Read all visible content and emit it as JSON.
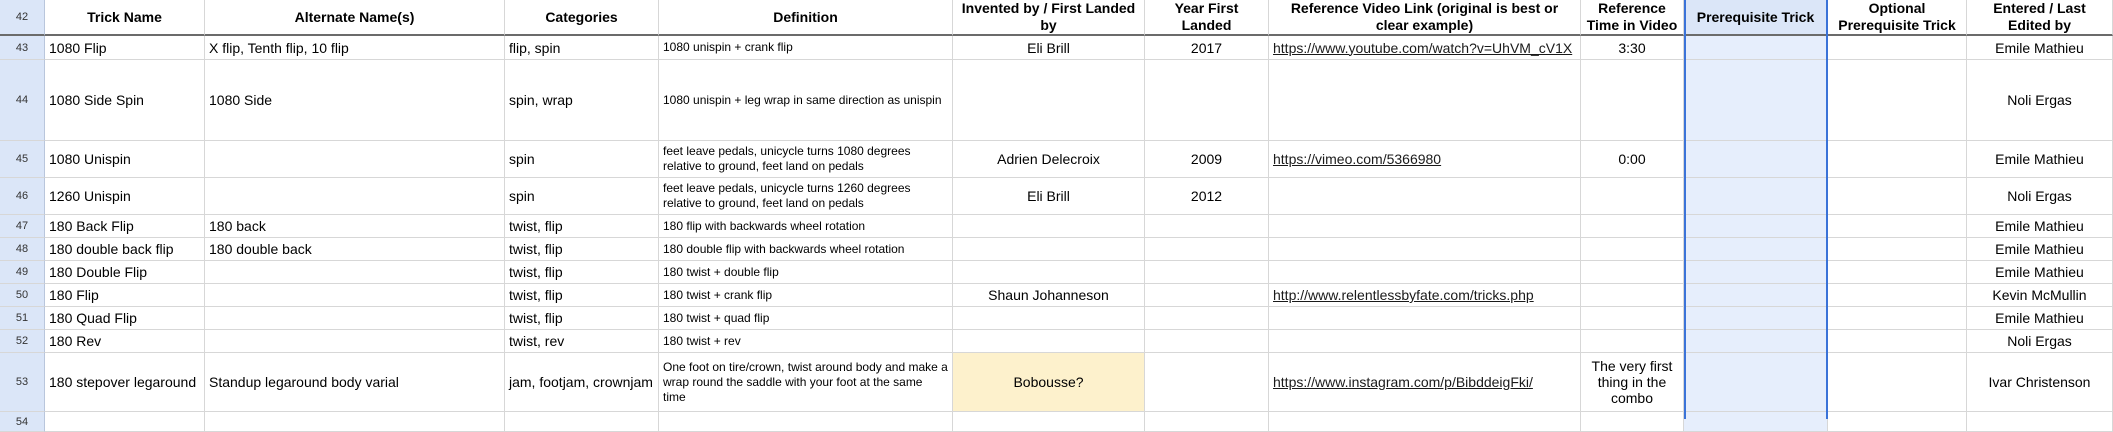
{
  "columns": [
    {
      "key": "rownum",
      "label": ""
    },
    {
      "key": "trick",
      "label": "Trick Name"
    },
    {
      "key": "alt",
      "label": "Alternate Name(s)"
    },
    {
      "key": "cat",
      "label": "Categories"
    },
    {
      "key": "def",
      "label": "Definition"
    },
    {
      "key": "inv",
      "label": "Invented by / First Landed by"
    },
    {
      "key": "year",
      "label": "Year First Landed"
    },
    {
      "key": "link",
      "label": "Reference Video Link (original is best or clear example)"
    },
    {
      "key": "time",
      "label": "Reference Time in Video"
    },
    {
      "key": "prereq",
      "label": "Prerequisite Trick"
    },
    {
      "key": "opt",
      "label": "Optional Prerequisite Trick"
    },
    {
      "key": "editor",
      "label": "Entered / Last Edited by"
    }
  ],
  "header_row_number": "42",
  "rows": [
    {
      "num": "43",
      "trick": "1080 Flip",
      "alt": "X flip, Tenth flip, 10 flip",
      "cat": "flip, spin",
      "def": "1080 unispin + crank flip",
      "inv": "Eli Brill",
      "year": "2017",
      "link": "https://www.youtube.com/watch?v=UhVM_cV1X",
      "time": "3:30",
      "prereq": "",
      "opt": "",
      "editor": "Emile Mathieu"
    },
    {
      "num": "44",
      "trick": "1080 Side Spin",
      "alt": "1080 Side",
      "cat": "spin, wrap",
      "def": "1080 unispin + leg wrap in same direction as unispin",
      "inv": "",
      "year": "",
      "link": "",
      "time": "",
      "prereq": "",
      "opt": "",
      "editor": "Noli Ergas"
    },
    {
      "num": "45",
      "trick": "1080 Unispin",
      "alt": "",
      "cat": "spin",
      "def": "feet leave pedals, unicycle turns 1080 degrees relative to ground, feet land on pedals",
      "inv": "Adrien Delecroix",
      "year": "2009",
      "link": "https://vimeo.com/5366980",
      "time": "0:00",
      "prereq": "",
      "opt": "",
      "editor": "Emile Mathieu"
    },
    {
      "num": "46",
      "trick": "1260 Unispin",
      "alt": "",
      "cat": "spin",
      "def": "feet leave pedals, unicycle turns 1260 degrees relative to ground, feet land on pedals",
      "inv": "Eli Brill",
      "year": "2012",
      "link": "",
      "time": "",
      "prereq": "",
      "opt": "",
      "editor": "Noli Ergas"
    },
    {
      "num": "47",
      "trick": "180 Back Flip",
      "alt": "180 back",
      "cat": "twist, flip",
      "def": "180 flip with backwards wheel rotation",
      "inv": "",
      "year": "",
      "link": "",
      "time": "",
      "prereq": "",
      "opt": "",
      "editor": "Emile Mathieu"
    },
    {
      "num": "48",
      "trick": "180 double back flip",
      "alt": "180 double back",
      "cat": "twist, flip",
      "def": "180 double flip with backwards wheel rotation",
      "inv": "",
      "year": "",
      "link": "",
      "time": "",
      "prereq": "",
      "opt": "",
      "editor": "Emile Mathieu"
    },
    {
      "num": "49",
      "trick": "180 Double Flip",
      "alt": "",
      "cat": "twist, flip",
      "def": "180 twist + double flip",
      "inv": "",
      "year": "",
      "link": "",
      "time": "",
      "prereq": "",
      "opt": "",
      "editor": "Emile Mathieu"
    },
    {
      "num": "50",
      "trick": "180 Flip",
      "alt": "",
      "cat": "twist, flip",
      "def": "180 twist + crank flip",
      "inv": "Shaun Johanneson",
      "year": "",
      "link": "http://www.relentlessbyfate.com/tricks.php",
      "time": "",
      "prereq": "",
      "opt": "",
      "editor": "Kevin McMullin"
    },
    {
      "num": "51",
      "trick": "180 Quad Flip",
      "alt": "",
      "cat": "twist, flip",
      "def": "180 twist + quad flip",
      "inv": "",
      "year": "",
      "link": "",
      "time": "",
      "prereq": "",
      "opt": "",
      "editor": "Emile Mathieu"
    },
    {
      "num": "52",
      "trick": "180 Rev",
      "alt": "",
      "cat": "twist, rev",
      "def": "180 twist + rev",
      "inv": "",
      "year": "",
      "link": "",
      "time": "",
      "prereq": "",
      "opt": "",
      "editor": "Noli Ergas"
    },
    {
      "num": "53",
      "trick": "180 stepover legaround",
      "alt": "Standup legaround body varial",
      "cat": "jam, footjam, crownjam",
      "def": "One foot on tire/crown, twist around body and make a wrap round the saddle with your foot at the same time",
      "inv": "Bobousse?",
      "year": "",
      "link": "https://www.instagram.com/p/BibddeigFki/",
      "time": "The very first thing in the combo",
      "prereq": "",
      "opt": "",
      "editor": "Ivar Christenson"
    },
    {
      "num": "54",
      "trick": "",
      "alt": "",
      "cat": "",
      "def": "",
      "inv": "",
      "year": "",
      "link": "",
      "time": "",
      "prereq": "",
      "opt": "",
      "editor": ""
    }
  ],
  "highlighted_cells": [
    {
      "row": "53",
      "column": "inv",
      "color": "#fdf1cc"
    }
  ],
  "colors": {
    "rownum_bg": "#dbe6f8",
    "prereq_col_bg": "#e6eefc",
    "highlight": "#fdf1cc",
    "selection_border": "#3b73d8"
  }
}
